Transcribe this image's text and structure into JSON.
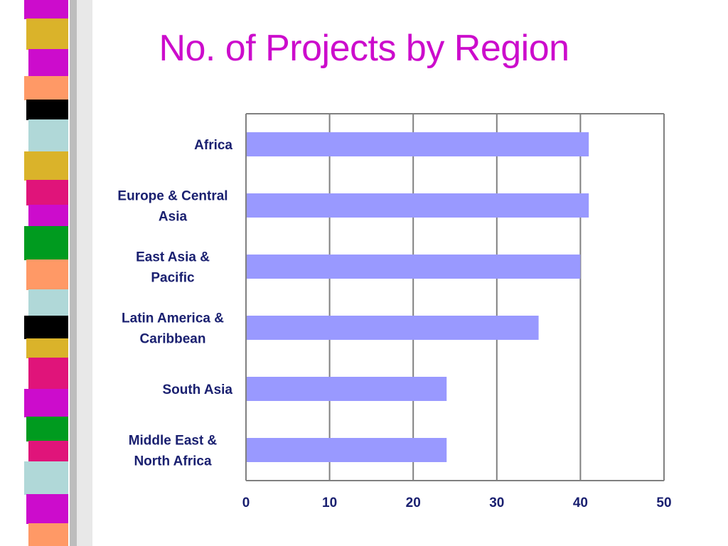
{
  "slide": {
    "title": "No. of Projects by Region"
  },
  "colors": {
    "title": "#cc0ccc",
    "bar": "#9999ff",
    "label": "#1a2070",
    "grid": "#808080"
  },
  "chart_data": {
    "type": "bar",
    "orientation": "horizontal",
    "title": "",
    "xlabel": "",
    "ylabel": "",
    "categories": [
      [
        "Africa"
      ],
      [
        "Europe & Central",
        "Asia"
      ],
      [
        "East Asia &",
        "Pacific"
      ],
      [
        "Latin America &",
        "Caribbean"
      ],
      [
        "South Asia"
      ],
      [
        "Middle East &",
        "North Africa"
      ]
    ],
    "values": [
      41,
      41,
      40,
      35,
      24,
      24
    ],
    "xlim": [
      0,
      50
    ],
    "ticks": [
      "0",
      "10",
      "20",
      "30",
      "40",
      "50"
    ],
    "grid": true,
    "legend": "none"
  }
}
